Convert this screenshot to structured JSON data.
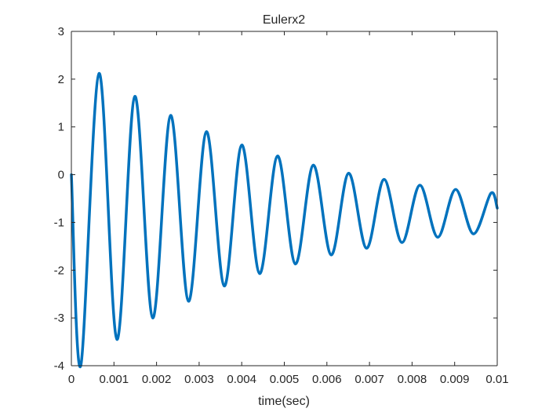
{
  "chart_data": {
    "type": "line",
    "title": "Eulerx2",
    "xlabel": "time(sec)",
    "ylabel": "",
    "xlim": [
      0,
      0.01
    ],
    "ylim": [
      -4,
      3
    ],
    "grid": false,
    "xticks": [
      0,
      0.001,
      0.002,
      0.003,
      0.004,
      0.005,
      0.006,
      0.007,
      0.008,
      0.009,
      0.01
    ],
    "xtick_labels": [
      "0",
      "0.001",
      "0.002",
      "0.003",
      "0.004",
      "0.005",
      "0.006",
      "0.007",
      "0.008",
      "0.009",
      "0.01"
    ],
    "yticks": [
      3,
      2,
      1,
      0,
      -1,
      -2,
      -3,
      -4
    ],
    "ytick_labels": [
      "3",
      "2",
      "1",
      "0",
      "-1",
      "-2",
      "-3",
      "-4"
    ],
    "series": [
      {
        "color": "#0072BD",
        "x": [
          0,
          0.00022,
          0.00065,
          0.00107,
          0.00149,
          0.00191,
          0.00233,
          0.00275,
          0.00317,
          0.00359,
          0.004,
          0.00442,
          0.00484,
          0.00526,
          0.00568,
          0.0061,
          0.00651,
          0.00693,
          0.00734,
          0.00776,
          0.00818,
          0.0086,
          0.00902,
          0.00944,
          0.00985,
          0.01
        ],
        "y": [
          0,
          -4.0,
          2.12,
          -3.45,
          1.64,
          -3.0,
          1.24,
          -2.65,
          0.9,
          -2.33,
          0.62,
          -2.07,
          0.39,
          -1.87,
          0.2,
          -1.68,
          0.03,
          -1.54,
          -0.1,
          -1.42,
          -0.22,
          -1.31,
          -0.31,
          -1.24,
          -0.39,
          -0.7
        ]
      }
    ]
  }
}
